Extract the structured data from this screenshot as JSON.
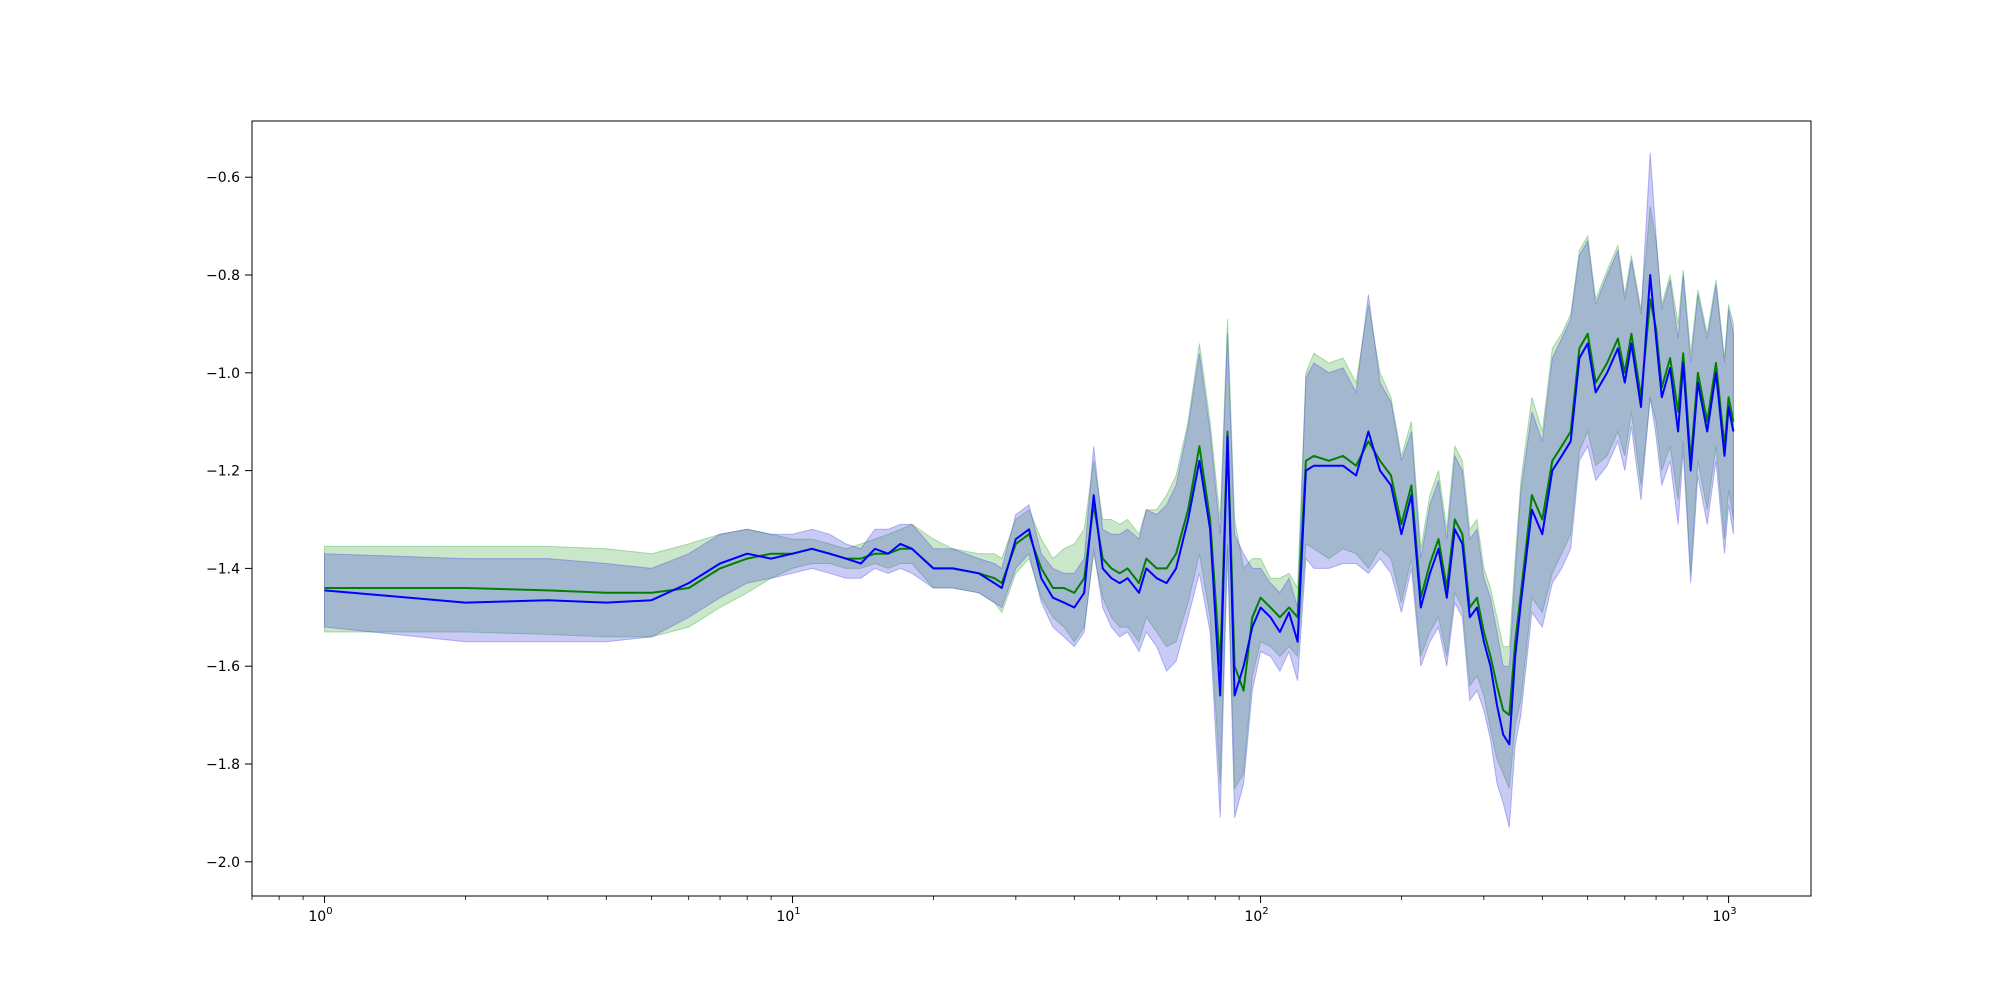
{
  "chart_data": {
    "type": "line",
    "title": "",
    "xlabel": "",
    "ylabel": "",
    "xscale": "log",
    "xlim": [
      0.7,
      1500
    ],
    "ylim": [
      -2.07,
      -0.485
    ],
    "grid": false,
    "legend": "none",
    "x_ticks": [
      {
        "base": "10",
        "exp": "0",
        "value": 1
      },
      {
        "base": "10",
        "exp": "1",
        "value": 10
      },
      {
        "base": "10",
        "exp": "2",
        "value": 100
      },
      {
        "base": "10",
        "exp": "3",
        "value": 1000
      }
    ],
    "y_ticks": [
      {
        "label": "−0.6",
        "value": -0.6
      },
      {
        "label": "−0.8",
        "value": -0.8
      },
      {
        "label": "−1.0",
        "value": -1.0
      },
      {
        "label": "−1.2",
        "value": -1.2
      },
      {
        "label": "−1.4",
        "value": -1.4
      },
      {
        "label": "−1.6",
        "value": -1.6
      },
      {
        "label": "−1.8",
        "value": -1.8
      },
      {
        "label": "−2.0",
        "value": -2.0
      }
    ],
    "series": [
      {
        "color": "#008000",
        "band_color": "#2ca02c",
        "band_opacity": 0.25,
        "x": [
          1,
          2,
          3,
          4,
          5,
          6,
          7,
          8,
          9,
          10,
          11,
          12,
          13,
          14,
          15,
          16,
          17,
          18,
          20,
          22,
          25,
          27,
          28,
          30,
          32,
          34,
          36,
          38,
          40,
          42,
          44,
          46,
          48,
          50,
          52,
          55,
          57,
          60,
          63,
          66,
          70,
          74,
          78,
          82,
          85,
          88,
          92,
          96,
          100,
          105,
          110,
          115,
          120,
          125,
          130,
          140,
          150,
          160,
          170,
          180,
          190,
          200,
          210,
          220,
          230,
          240,
          250,
          260,
          270,
          280,
          290,
          300,
          310,
          320,
          330,
          340,
          350,
          360,
          380,
          400,
          420,
          440,
          460,
          480,
          500,
          520,
          550,
          580,
          600,
          620,
          650,
          680,
          700,
          720,
          750,
          780,
          800,
          830,
          860,
          900,
          940,
          980,
          1000,
          1024
        ],
        "mean": [
          -1.44,
          -1.44,
          -1.445,
          -1.45,
          -1.45,
          -1.44,
          -1.4,
          -1.38,
          -1.37,
          -1.37,
          -1.36,
          -1.37,
          -1.38,
          -1.38,
          -1.37,
          -1.37,
          -1.36,
          -1.36,
          -1.4,
          -1.4,
          -1.41,
          -1.42,
          -1.43,
          -1.35,
          -1.33,
          -1.4,
          -1.44,
          -1.44,
          -1.45,
          -1.42,
          -1.27,
          -1.38,
          -1.4,
          -1.41,
          -1.4,
          -1.43,
          -1.38,
          -1.4,
          -1.4,
          -1.37,
          -1.28,
          -1.15,
          -1.3,
          -1.6,
          -1.12,
          -1.6,
          -1.65,
          -1.5,
          -1.46,
          -1.48,
          -1.5,
          -1.48,
          -1.5,
          -1.18,
          -1.17,
          -1.18,
          -1.17,
          -1.19,
          -1.14,
          -1.18,
          -1.21,
          -1.31,
          -1.23,
          -1.46,
          -1.39,
          -1.34,
          -1.44,
          -1.3,
          -1.33,
          -1.48,
          -1.46,
          -1.53,
          -1.58,
          -1.64,
          -1.69,
          -1.7,
          -1.55,
          -1.45,
          -1.25,
          -1.3,
          -1.18,
          -1.15,
          -1.12,
          -0.95,
          -0.92,
          -1.02,
          -0.98,
          -0.93,
          -1.0,
          -0.92,
          -1.05,
          -0.85,
          -0.91,
          -1.03,
          -0.97,
          -1.08,
          -0.96,
          -1.18,
          -1.0,
          -1.1,
          -0.98,
          -1.15,
          -1.05,
          -1.1
        ],
        "upper": [
          -1.355,
          -1.355,
          -1.355,
          -1.36,
          -1.37,
          -1.35,
          -1.33,
          -1.32,
          -1.33,
          -1.34,
          -1.34,
          -1.35,
          -1.36,
          -1.35,
          -1.34,
          -1.33,
          -1.32,
          -1.31,
          -1.34,
          -1.36,
          -1.37,
          -1.37,
          -1.38,
          -1.3,
          -1.28,
          -1.34,
          -1.38,
          -1.36,
          -1.35,
          -1.32,
          -1.18,
          -1.3,
          -1.3,
          -1.31,
          -1.3,
          -1.33,
          -1.28,
          -1.28,
          -1.25,
          -1.21,
          -1.1,
          -0.94,
          -1.1,
          -1.3,
          -0.89,
          -1.3,
          -1.4,
          -1.38,
          -1.38,
          -1.42,
          -1.42,
          -1.41,
          -1.44,
          -1.0,
          -0.96,
          -0.98,
          -0.97,
          -1.02,
          -0.86,
          -1.0,
          -1.05,
          -1.17,
          -1.1,
          -1.36,
          -1.25,
          -1.2,
          -1.32,
          -1.15,
          -1.18,
          -1.32,
          -1.3,
          -1.4,
          -1.44,
          -1.5,
          -1.56,
          -1.56,
          -1.38,
          -1.22,
          -1.05,
          -1.12,
          -0.95,
          -0.92,
          -0.88,
          -0.75,
          -0.72,
          -0.85,
          -0.79,
          -0.74,
          -0.84,
          -0.76,
          -0.87,
          -0.66,
          -0.73,
          -0.86,
          -0.8,
          -0.9,
          -0.79,
          -0.96,
          -0.83,
          -0.92,
          -0.81,
          -0.97,
          -0.86,
          -0.9
        ],
        "lower": [
          -1.53,
          -1.53,
          -1.535,
          -1.54,
          -1.54,
          -1.52,
          -1.48,
          -1.45,
          -1.42,
          -1.4,
          -1.39,
          -1.39,
          -1.4,
          -1.4,
          -1.39,
          -1.4,
          -1.39,
          -1.39,
          -1.44,
          -1.44,
          -1.45,
          -1.47,
          -1.49,
          -1.41,
          -1.38,
          -1.46,
          -1.5,
          -1.52,
          -1.55,
          -1.52,
          -1.37,
          -1.46,
          -1.5,
          -1.52,
          -1.52,
          -1.55,
          -1.5,
          -1.53,
          -1.56,
          -1.55,
          -1.47,
          -1.37,
          -1.5,
          -1.84,
          -1.35,
          -1.85,
          -1.82,
          -1.62,
          -1.55,
          -1.56,
          -1.58,
          -1.56,
          -1.58,
          -1.35,
          -1.36,
          -1.38,
          -1.36,
          -1.37,
          -1.4,
          -1.36,
          -1.38,
          -1.47,
          -1.38,
          -1.58,
          -1.53,
          -1.5,
          -1.58,
          -1.45,
          -1.48,
          -1.64,
          -1.62,
          -1.66,
          -1.73,
          -1.79,
          -1.82,
          -1.85,
          -1.72,
          -1.67,
          -1.46,
          -1.49,
          -1.41,
          -1.37,
          -1.33,
          -1.16,
          -1.12,
          -1.19,
          -1.17,
          -1.12,
          -1.17,
          -1.08,
          -1.23,
          -1.05,
          -1.1,
          -1.2,
          -1.15,
          -1.26,
          -1.14,
          -1.41,
          -1.18,
          -1.28,
          -1.15,
          -1.34,
          -1.24,
          -1.3
        ]
      },
      {
        "color": "#0000ff",
        "band_color": "#4040e0",
        "band_opacity": 0.28,
        "x": [
          1,
          2,
          3,
          4,
          5,
          6,
          7,
          8,
          9,
          10,
          11,
          12,
          13,
          14,
          15,
          16,
          17,
          18,
          20,
          22,
          25,
          27,
          28,
          30,
          32,
          34,
          36,
          38,
          40,
          42,
          44,
          46,
          48,
          50,
          52,
          55,
          57,
          60,
          63,
          66,
          70,
          74,
          78,
          82,
          85,
          88,
          92,
          96,
          100,
          105,
          110,
          115,
          120,
          125,
          130,
          140,
          150,
          160,
          170,
          180,
          190,
          200,
          210,
          220,
          230,
          240,
          250,
          260,
          270,
          280,
          290,
          300,
          310,
          320,
          330,
          340,
          350,
          360,
          380,
          400,
          420,
          440,
          460,
          480,
          500,
          520,
          550,
          580,
          600,
          620,
          650,
          680,
          700,
          720,
          750,
          780,
          800,
          830,
          860,
          900,
          940,
          980,
          1000,
          1024
        ],
        "mean": [
          -1.445,
          -1.47,
          -1.465,
          -1.47,
          -1.465,
          -1.43,
          -1.39,
          -1.37,
          -1.38,
          -1.37,
          -1.36,
          -1.37,
          -1.38,
          -1.39,
          -1.36,
          -1.37,
          -1.35,
          -1.36,
          -1.4,
          -1.4,
          -1.41,
          -1.43,
          -1.44,
          -1.34,
          -1.32,
          -1.42,
          -1.46,
          -1.47,
          -1.48,
          -1.45,
          -1.25,
          -1.4,
          -1.42,
          -1.43,
          -1.42,
          -1.45,
          -1.4,
          -1.42,
          -1.43,
          -1.4,
          -1.3,
          -1.18,
          -1.32,
          -1.66,
          -1.13,
          -1.66,
          -1.6,
          -1.52,
          -1.48,
          -1.5,
          -1.53,
          -1.49,
          -1.55,
          -1.2,
          -1.19,
          -1.19,
          -1.19,
          -1.21,
          -1.12,
          -1.2,
          -1.23,
          -1.33,
          -1.25,
          -1.48,
          -1.41,
          -1.36,
          -1.46,
          -1.32,
          -1.35,
          -1.5,
          -1.48,
          -1.55,
          -1.6,
          -1.68,
          -1.74,
          -1.76,
          -1.58,
          -1.47,
          -1.28,
          -1.33,
          -1.2,
          -1.17,
          -1.14,
          -0.97,
          -0.94,
          -1.04,
          -1.0,
          -0.95,
          -1.02,
          -0.94,
          -1.07,
          -0.8,
          -0.93,
          -1.05,
          -0.99,
          -1.12,
          -0.98,
          -1.2,
          -1.02,
          -1.12,
          -1.0,
          -1.17,
          -1.07,
          -1.12
        ],
        "upper": [
          -1.37,
          -1.38,
          -1.38,
          -1.39,
          -1.4,
          -1.37,
          -1.33,
          -1.32,
          -1.33,
          -1.33,
          -1.32,
          -1.33,
          -1.35,
          -1.36,
          -1.32,
          -1.32,
          -1.31,
          -1.31,
          -1.36,
          -1.36,
          -1.38,
          -1.39,
          -1.4,
          -1.29,
          -1.27,
          -1.37,
          -1.4,
          -1.41,
          -1.41,
          -1.38,
          -1.15,
          -1.32,
          -1.33,
          -1.33,
          -1.32,
          -1.34,
          -1.28,
          -1.29,
          -1.27,
          -1.23,
          -1.11,
          -0.96,
          -1.12,
          -1.33,
          -0.92,
          -1.33,
          -1.37,
          -1.4,
          -1.4,
          -1.43,
          -1.45,
          -1.42,
          -1.48,
          -1.01,
          -0.98,
          -1.0,
          -0.99,
          -1.04,
          -0.84,
          -1.02,
          -1.06,
          -1.18,
          -1.12,
          -1.38,
          -1.27,
          -1.22,
          -1.34,
          -1.17,
          -1.2,
          -1.34,
          -1.32,
          -1.42,
          -1.46,
          -1.53,
          -1.6,
          -1.6,
          -1.41,
          -1.24,
          -1.08,
          -1.14,
          -0.97,
          -0.93,
          -0.89,
          -0.76,
          -0.73,
          -0.86,
          -0.8,
          -0.75,
          -0.85,
          -0.77,
          -0.88,
          -0.55,
          -0.72,
          -0.87,
          -0.81,
          -0.93,
          -0.8,
          -0.98,
          -0.84,
          -0.93,
          -0.82,
          -0.98,
          -0.87,
          -0.92
        ],
        "lower": [
          -1.52,
          -1.55,
          -1.55,
          -1.55,
          -1.54,
          -1.5,
          -1.46,
          -1.43,
          -1.42,
          -1.41,
          -1.4,
          -1.41,
          -1.42,
          -1.42,
          -1.4,
          -1.41,
          -1.4,
          -1.41,
          -1.44,
          -1.44,
          -1.45,
          -1.47,
          -1.48,
          -1.4,
          -1.37,
          -1.47,
          -1.52,
          -1.54,
          -1.56,
          -1.53,
          -1.36,
          -1.48,
          -1.52,
          -1.54,
          -1.53,
          -1.57,
          -1.53,
          -1.56,
          -1.61,
          -1.59,
          -1.5,
          -1.41,
          -1.53,
          -1.91,
          -1.36,
          -1.91,
          -1.84,
          -1.65,
          -1.57,
          -1.58,
          -1.61,
          -1.57,
          -1.63,
          -1.38,
          -1.4,
          -1.4,
          -1.39,
          -1.39,
          -1.41,
          -1.38,
          -1.41,
          -1.49,
          -1.4,
          -1.6,
          -1.55,
          -1.52,
          -1.6,
          -1.47,
          -1.5,
          -1.67,
          -1.65,
          -1.69,
          -1.75,
          -1.84,
          -1.88,
          -1.93,
          -1.76,
          -1.7,
          -1.49,
          -1.52,
          -1.43,
          -1.4,
          -1.36,
          -1.18,
          -1.15,
          -1.22,
          -1.19,
          -1.14,
          -1.2,
          -1.11,
          -1.26,
          -1.05,
          -1.13,
          -1.23,
          -1.18,
          -1.31,
          -1.16,
          -1.43,
          -1.21,
          -1.31,
          -1.18,
          -1.37,
          -1.27,
          -1.33
        ]
      }
    ]
  }
}
